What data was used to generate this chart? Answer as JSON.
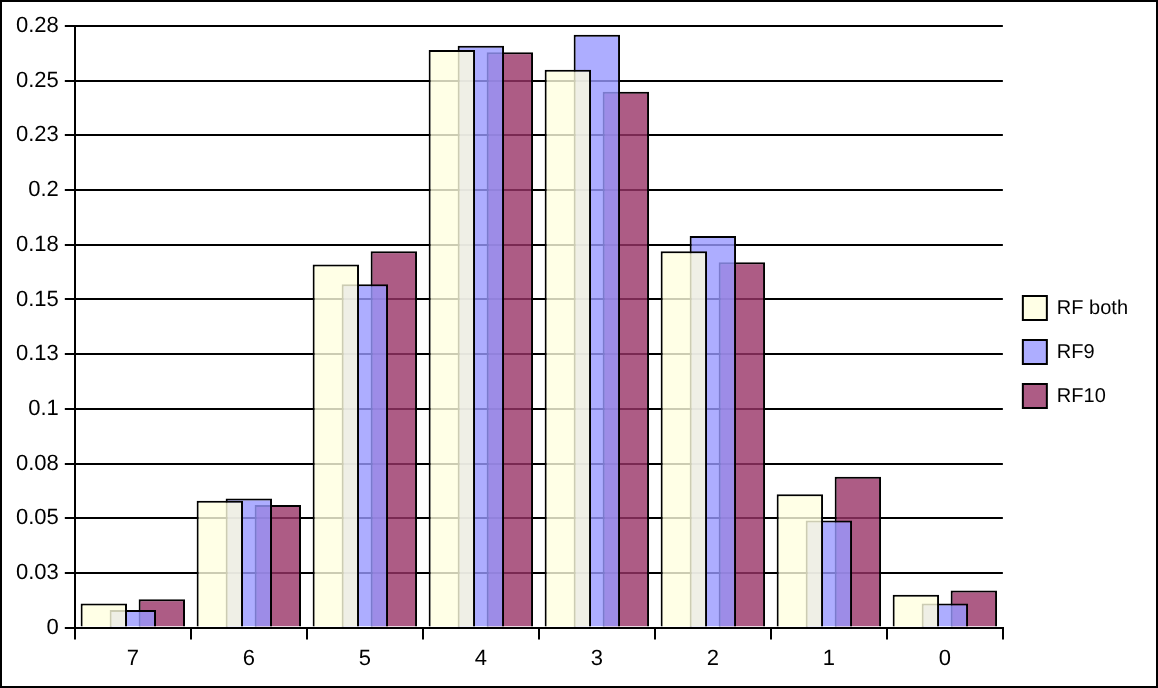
{
  "chart_data": {
    "type": "bar",
    "categories": [
      "7",
      "6",
      "5",
      "4",
      "3",
      "2",
      "1",
      "0"
    ],
    "series": [
      {
        "name": "RF both",
        "color": "#ffffe0",
        "values": [
          0.011,
          0.058,
          0.166,
          0.264,
          0.255,
          0.172,
          0.061,
          0.015
        ]
      },
      {
        "name": "RF9",
        "color": "#9999ff",
        "values": [
          0.008,
          0.059,
          0.157,
          0.266,
          0.271,
          0.179,
          0.049,
          0.011
        ]
      },
      {
        "name": "RF10",
        "color": "#993366",
        "values": [
          0.013,
          0.056,
          0.172,
          0.263,
          0.245,
          0.167,
          0.069,
          0.017
        ]
      }
    ],
    "ylim": [
      0,
      0.275
    ],
    "yticks": [
      0,
      {
        "value": 0.025,
        "label": "0.03"
      },
      0.05,
      {
        "value": 0.075,
        "label": "0.08"
      },
      0.1,
      {
        "value": 0.125,
        "label": "0.13"
      },
      0.15,
      {
        "value": 0.175,
        "label": "0.18"
      },
      0.2,
      {
        "value": 0.225,
        "label": "0.23"
      },
      0.25,
      {
        "value": 0.275,
        "label": "0.28"
      }
    ],
    "grid": "y",
    "legend": "right"
  }
}
